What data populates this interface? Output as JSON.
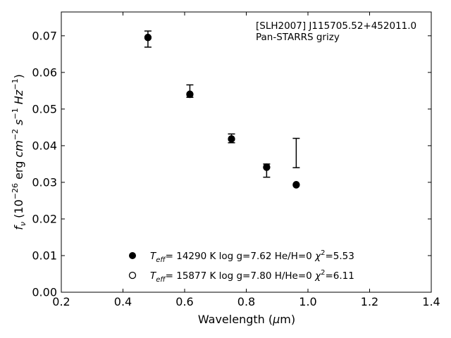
{
  "chart_data": {
    "type": "scatter",
    "title": "",
    "xlabel": "Wavelength (μm)",
    "ylabel": "f_ν (10^-26 erg cm^-2 s^-1 Hz^-1)",
    "xlim": [
      0.2,
      1.4
    ],
    "ylim": [
      0.0,
      0.0765
    ],
    "xticks": [
      0.2,
      0.4,
      0.6,
      0.8,
      1.0,
      1.2,
      1.4
    ],
    "yticks": [
      0.0,
      0.01,
      0.02,
      0.03,
      0.04,
      0.05,
      0.06,
      0.07
    ],
    "grid": false,
    "annotations": [
      "[SLH2007] J115705.52+452011.0",
      "Pan-STARRS grizy"
    ],
    "observed": {
      "x": [
        0.481,
        0.617,
        0.752,
        0.866,
        0.962
      ],
      "y": [
        0.0691,
        0.0549,
        0.042,
        0.0332,
        0.038
      ],
      "yerr": [
        0.0022,
        0.0017,
        0.0012,
        0.0018,
        0.004
      ]
    },
    "series": [
      {
        "name": "T_eff= 14290 K  log g=7.62  He/H=0  χ²=5.53",
        "marker": "filled-circle",
        "x": [
          0.481,
          0.617,
          0.752,
          0.866,
          0.962
        ],
        "y": [
          0.0696,
          0.0541,
          0.0419,
          0.0342,
          0.0294
        ]
      },
      {
        "name": "T_eff= 15877 K  log g=7.80  H/He=0  χ²=6.11",
        "marker": "open-circle",
        "x": [
          0.481,
          0.617,
          0.752,
          0.866,
          0.962
        ],
        "y": [
          0.0695,
          0.054,
          0.0418,
          0.0341,
          0.0293
        ]
      }
    ],
    "legend_position": "bottom-center"
  }
}
